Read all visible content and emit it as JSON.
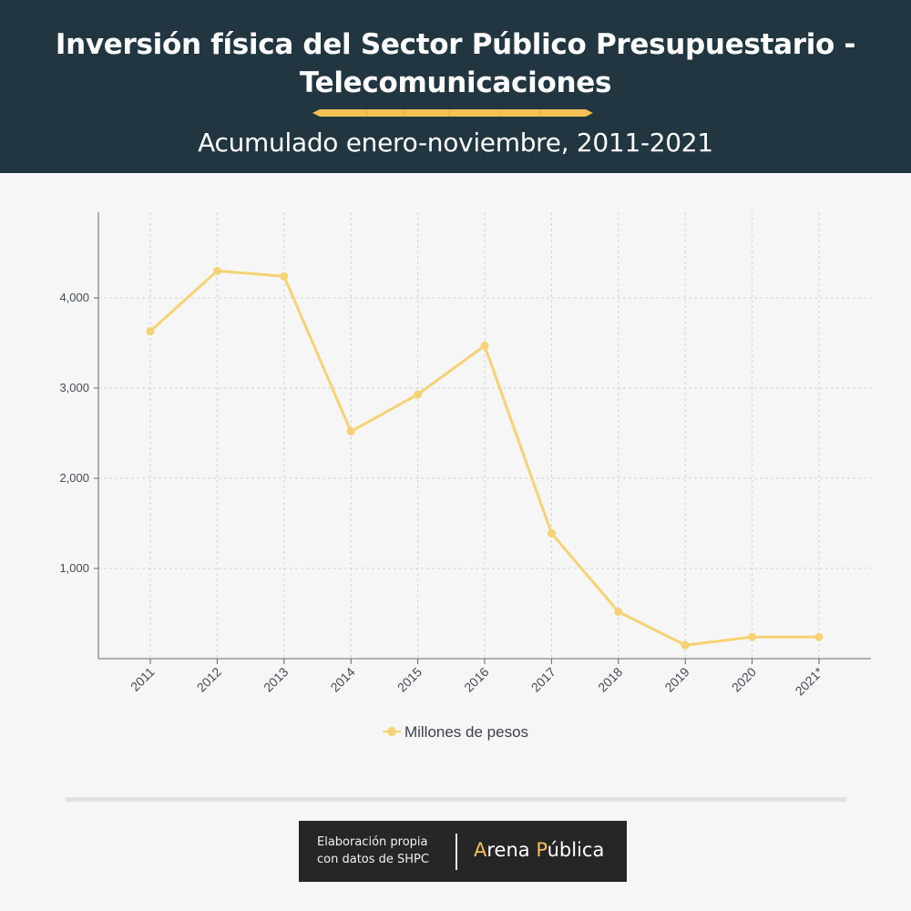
{
  "header": {
    "title": "Inversión física del Sector Público Presupuestario - Telecomunicaciones",
    "subtitle": "Acumulado enero-noviembre, 2011-2021"
  },
  "colors": {
    "header_bg": "#213641",
    "line": "#f6d274",
    "accent": "#f4c154"
  },
  "chart_data": {
    "type": "line",
    "categories": [
      "2011",
      "2012",
      "2013",
      "2014",
      "2015",
      "2016",
      "2017",
      "2018",
      "2019",
      "2020",
      "2021*"
    ],
    "series": [
      {
        "name": "Millones de pesos",
        "values": [
          3630,
          4300,
          4240,
          2520,
          2930,
          3470,
          1390,
          520,
          150,
          240,
          240
        ]
      }
    ],
    "yticks": [
      1000,
      2000,
      3000,
      4000
    ],
    "ytick_labels": [
      "1,000",
      "2,000",
      "3,000",
      "4,000"
    ],
    "ylim": [
      0,
      4950
    ],
    "grid": true,
    "legend_position": "bottom-center"
  },
  "legend": {
    "label": "Millones de pesos"
  },
  "footer": {
    "credit_line1": "Elaboración propia",
    "credit_line2": "con datos de SHPC",
    "brand_a": "A",
    "brand_rena": "rena ",
    "brand_p": "P",
    "brand_ublica": "ública"
  }
}
